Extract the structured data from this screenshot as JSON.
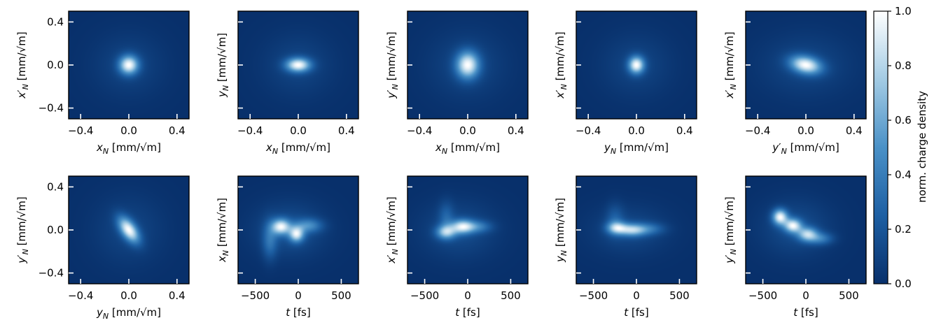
{
  "chart_data": {
    "type": "heatmap",
    "colormap": [
      "#08306b",
      "#1d5fa3",
      "#4a91c7",
      "#a3cbe4",
      "#ffffff"
    ],
    "colorbar": {
      "label": "norm. charge density",
      "range": [
        0.0,
        1.0
      ],
      "ticks": [
        "0.0",
        "0.2",
        "0.4",
        "0.6",
        "0.8",
        "1.0"
      ]
    },
    "panels": [
      {
        "row": 0,
        "col": 0,
        "xlabel": [
          "x",
          "N",
          "",
          " [mm/√m]"
        ],
        "ylabel": [
          "x",
          "N",
          "′",
          " [mm/√m]"
        ],
        "xlim": [
          -0.5,
          0.5
        ],
        "ylim": [
          -0.5,
          0.5
        ],
        "xticks": [
          -0.4,
          0.0,
          0.4
        ],
        "xticklabels": [
          "−0.4",
          "0.0",
          "0.4"
        ],
        "yticks": [
          -0.4,
          0.0,
          0.4
        ],
        "yticklabels": [
          "−0.4",
          "0.0",
          "0.4"
        ],
        "blobs": [
          {
            "cx": 0.0,
            "cy": 0.0,
            "sx": 0.055,
            "sy": 0.06,
            "amp": 1.0,
            "rot": 0
          },
          {
            "cx": 0.0,
            "cy": 0.0,
            "sx": 0.2,
            "sy": 0.2,
            "amp": 0.12,
            "rot": 0
          }
        ]
      },
      {
        "row": 0,
        "col": 1,
        "xlabel": [
          "x",
          "N",
          "",
          " [mm/√m]"
        ],
        "ylabel": [
          "y",
          "N",
          "",
          " [mm/√m]"
        ],
        "xlim": [
          -0.5,
          0.5
        ],
        "ylim": [
          -0.5,
          0.5
        ],
        "xticks": [
          -0.4,
          0.0,
          0.4
        ],
        "xticklabels": [
          "−0.4",
          "0.0",
          "0.4"
        ],
        "yticks": [
          -0.4,
          0.0,
          0.4
        ],
        "yticklabels": [
          "",
          "",
          ""
        ],
        "blobs": [
          {
            "cx": 0.0,
            "cy": 0.0,
            "sx": 0.07,
            "sy": 0.045,
            "amp": 1.0,
            "rot": 0
          },
          {
            "cx": 0.0,
            "cy": 0.0,
            "sx": 0.2,
            "sy": 0.2,
            "amp": 0.12,
            "rot": 0
          }
        ]
      },
      {
        "row": 0,
        "col": 2,
        "xlabel": [
          "x",
          "N",
          "",
          " [mm/√m]"
        ],
        "ylabel": [
          "y",
          "N",
          "′",
          " [mm/√m]"
        ],
        "xlim": [
          -0.5,
          0.5
        ],
        "ylim": [
          -0.5,
          0.5
        ],
        "xticks": [
          -0.4,
          0.0,
          0.4
        ],
        "xticklabels": [
          "−0.4",
          "0.0",
          "0.4"
        ],
        "yticks": [
          -0.4,
          0.0,
          0.4
        ],
        "yticklabels": [
          "",
          "",
          ""
        ],
        "blobs": [
          {
            "cx": 0.0,
            "cy": 0.0,
            "sx": 0.065,
            "sy": 0.085,
            "amp": 1.0,
            "rot": 0
          },
          {
            "cx": 0.0,
            "cy": 0.0,
            "sx": 0.22,
            "sy": 0.22,
            "amp": 0.13,
            "rot": 0
          }
        ]
      },
      {
        "row": 0,
        "col": 3,
        "xlabel": [
          "y",
          "N",
          "",
          " [mm/√m]"
        ],
        "ylabel": [
          "x",
          "N",
          "′",
          " [mm/√m]"
        ],
        "xlim": [
          -0.5,
          0.5
        ],
        "ylim": [
          -0.5,
          0.5
        ],
        "xticks": [
          -0.4,
          0.0,
          0.4
        ],
        "xticklabels": [
          "−0.4",
          "0.0",
          "0.4"
        ],
        "yticks": [
          -0.4,
          0.0,
          0.4
        ],
        "yticklabels": [
          "",
          "",
          ""
        ],
        "blobs": [
          {
            "cx": 0.0,
            "cy": 0.0,
            "sx": 0.045,
            "sy": 0.055,
            "amp": 1.0,
            "rot": 0
          },
          {
            "cx": 0.0,
            "cy": 0.0,
            "sx": 0.2,
            "sy": 0.2,
            "amp": 0.12,
            "rot": 0
          }
        ]
      },
      {
        "row": 0,
        "col": 4,
        "xlabel": [
          "y",
          "N",
          "′",
          " [mm/√m]"
        ],
        "ylabel": [
          "x",
          "N",
          "′",
          " [mm/√m]"
        ],
        "xlim": [
          -0.5,
          0.5
        ],
        "ylim": [
          -0.5,
          0.5
        ],
        "xticks": [
          -0.4,
          0.0,
          0.4
        ],
        "xticklabels": [
          "−0.4",
          "0.0",
          "0.4"
        ],
        "yticks": [
          -0.4,
          0.0,
          0.4
        ],
        "yticklabels": [
          "",
          "",
          ""
        ],
        "blobs": [
          {
            "cx": 0.0,
            "cy": 0.0,
            "sx": 0.09,
            "sy": 0.055,
            "amp": 1.0,
            "rot": -15
          },
          {
            "cx": 0.0,
            "cy": 0.0,
            "sx": 0.26,
            "sy": 0.2,
            "amp": 0.13,
            "rot": 0
          }
        ]
      },
      {
        "row": 1,
        "col": 0,
        "xlabel": [
          "y",
          "N",
          "",
          " [mm/√m]"
        ],
        "ylabel": [
          "y",
          "N",
          "′",
          " [mm/√m]"
        ],
        "xlim": [
          -0.5,
          0.5
        ],
        "ylim": [
          -0.5,
          0.5
        ],
        "xticks": [
          -0.4,
          0.0,
          0.4
        ],
        "xticklabels": [
          "−0.4",
          "0.0",
          "0.4"
        ],
        "yticks": [
          -0.4,
          0.0,
          0.4
        ],
        "yticklabels": [
          "−0.4",
          "0.0",
          "0.4"
        ],
        "blobs": [
          {
            "cx": 0.0,
            "cy": 0.0,
            "sx": 0.045,
            "sy": 0.09,
            "amp": 1.0,
            "rot": 30
          },
          {
            "cx": 0.0,
            "cy": 0.0,
            "sx": 0.2,
            "sy": 0.22,
            "amp": 0.12,
            "rot": 0
          }
        ]
      },
      {
        "row": 1,
        "col": 1,
        "xlabel": [
          "t",
          "",
          "",
          " [fs]"
        ],
        "ylabel": [
          "x",
          "N",
          "",
          " [mm/√m]"
        ],
        "xlim": [
          -700,
          700
        ],
        "ylim": [
          -0.5,
          0.5
        ],
        "xticks": [
          -500,
          0,
          500
        ],
        "xticklabels": [
          "−500",
          "0",
          "500"
        ],
        "yticks": [
          -0.4,
          0.0,
          0.4
        ],
        "yticklabels": [
          "",
          "",
          ""
        ],
        "blobs": [
          {
            "cx": -200,
            "cy": 0.03,
            "sx": 75,
            "sy": 0.05,
            "amp": 0.85,
            "rot": 0
          },
          {
            "cx": -20,
            "cy": -0.04,
            "sx": 60,
            "sy": 0.05,
            "amp": 0.8,
            "rot": 0
          },
          {
            "cx": 120,
            "cy": 0.04,
            "sx": 110,
            "sy": 0.045,
            "amp": 0.4,
            "rot": 0
          },
          {
            "cx": -330,
            "cy": -0.1,
            "sx": 60,
            "sy": 0.12,
            "amp": 0.3,
            "rot": 0
          },
          {
            "cx": -100,
            "cy": 0.0,
            "sx": 280,
            "sy": 0.17,
            "amp": 0.18,
            "rot": 0
          }
        ]
      },
      {
        "row": 1,
        "col": 2,
        "xlabel": [
          "t",
          "",
          "",
          " [fs]"
        ],
        "ylabel": [
          "x",
          "N",
          "′",
          " [mm/√m]"
        ],
        "xlim": [
          -700,
          700
        ],
        "ylim": [
          -0.5,
          0.5
        ],
        "xticks": [
          -500,
          0,
          500
        ],
        "xticklabels": [
          "−500",
          "0",
          "500"
        ],
        "yticks": [
          -0.4,
          0.0,
          0.4
        ],
        "yticklabels": [
          "",
          "",
          ""
        ],
        "blobs": [
          {
            "cx": -250,
            "cy": -0.02,
            "sx": 80,
            "sy": 0.045,
            "amp": 0.8,
            "rot": 0
          },
          {
            "cx": -60,
            "cy": 0.03,
            "sx": 90,
            "sy": 0.045,
            "amp": 0.95,
            "rot": 0
          },
          {
            "cx": 120,
            "cy": 0.03,
            "sx": 110,
            "sy": 0.04,
            "amp": 0.4,
            "rot": 0
          },
          {
            "cx": -250,
            "cy": 0.12,
            "sx": 60,
            "sy": 0.1,
            "amp": 0.25,
            "rot": 0
          },
          {
            "cx": -100,
            "cy": 0.0,
            "sx": 300,
            "sy": 0.18,
            "amp": 0.18,
            "rot": 0
          }
        ]
      },
      {
        "row": 1,
        "col": 3,
        "xlabel": [
          "t",
          "",
          "",
          " [fs]"
        ],
        "ylabel": [
          "y",
          "N",
          "",
          " [mm/√m]"
        ],
        "xlim": [
          -700,
          700
        ],
        "ylim": [
          -0.5,
          0.5
        ],
        "xticks": [
          -500,
          0,
          500
        ],
        "xticklabels": [
          "−500",
          "0",
          "500"
        ],
        "yticks": [
          -0.4,
          0.0,
          0.4
        ],
        "yticklabels": [
          "",
          "",
          ""
        ],
        "blobs": [
          {
            "cx": -230,
            "cy": 0.02,
            "sx": 80,
            "sy": 0.04,
            "amp": 0.8,
            "rot": 0
          },
          {
            "cx": -50,
            "cy": 0.0,
            "sx": 110,
            "sy": 0.04,
            "amp": 0.9,
            "rot": 0
          },
          {
            "cx": 160,
            "cy": 0.01,
            "sx": 120,
            "sy": 0.04,
            "amp": 0.35,
            "rot": 0
          },
          {
            "cx": -250,
            "cy": 0.1,
            "sx": 70,
            "sy": 0.1,
            "amp": 0.25,
            "rot": 0
          },
          {
            "cx": -80,
            "cy": 0.0,
            "sx": 300,
            "sy": 0.15,
            "amp": 0.18,
            "rot": 0
          }
        ]
      },
      {
        "row": 1,
        "col": 4,
        "xlabel": [
          "t",
          "",
          "",
          " [fs]"
        ],
        "ylabel": [
          "y",
          "N",
          "′",
          " [mm/√m]"
        ],
        "xlim": [
          -700,
          700
        ],
        "ylim": [
          -0.5,
          0.5
        ],
        "xticks": [
          -500,
          0,
          500
        ],
        "xticklabels": [
          "−500",
          "0",
          "500"
        ],
        "yticks": [
          -0.4,
          0.0,
          0.4
        ],
        "yticklabels": [
          "",
          "",
          ""
        ],
        "blobs": [
          {
            "cx": -300,
            "cy": 0.12,
            "sx": 60,
            "sy": 0.05,
            "amp": 0.9,
            "rot": 0
          },
          {
            "cx": -150,
            "cy": 0.04,
            "sx": 70,
            "sy": 0.045,
            "amp": 0.85,
            "rot": 0
          },
          {
            "cx": 20,
            "cy": -0.04,
            "sx": 80,
            "sy": 0.045,
            "amp": 0.7,
            "rot": 0
          },
          {
            "cx": 170,
            "cy": -0.08,
            "sx": 100,
            "sy": 0.04,
            "amp": 0.35,
            "rot": 0
          },
          {
            "cx": -120,
            "cy": 0.02,
            "sx": 280,
            "sy": 0.18,
            "amp": 0.15,
            "rot": 0
          }
        ]
      }
    ]
  }
}
